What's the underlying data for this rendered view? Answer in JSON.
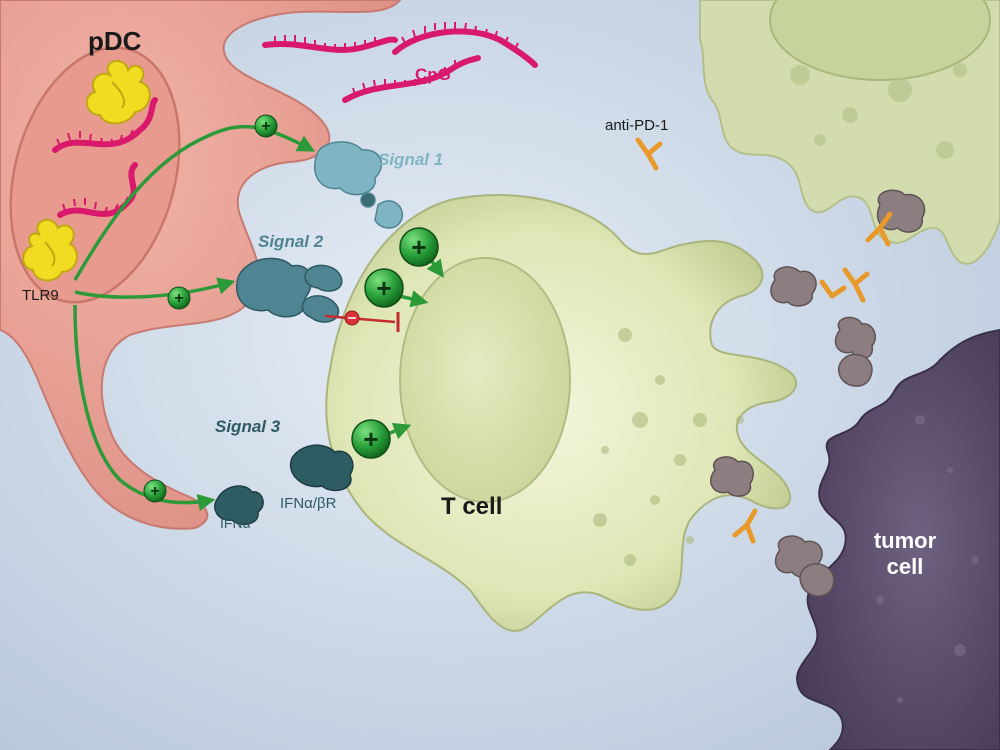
{
  "labels": {
    "pdc": "pDC",
    "cpg": "CpG",
    "tlr9": "TLR9",
    "signal1": "Signal 1",
    "signal2": "Signal 2",
    "signal3": "Signal 3",
    "ifna": "IFNα",
    "ifnar": "IFNα/βR",
    "tcell": "T cell",
    "antipd1": "anti-PD-1",
    "tumor_line1": "tumor",
    "tumor_line2": "cell"
  },
  "signs": {
    "plus": "+"
  },
  "colors": {
    "pdc_cell": "#eaa397",
    "t_cell": "#dbe3b2",
    "tumor_cell": "#5f5170",
    "apc_cell": "#d2dcae",
    "cpg_dna": "#d9196b",
    "tlr9": "#f2dc22",
    "arrow": "#2d9a3a",
    "plus_badge": "#2aa13a",
    "inhibit": "#c62a2e",
    "antibody": "#e79a2b",
    "receptor_teal": "#4f8592",
    "pd1_gray": "#8c7e80"
  }
}
